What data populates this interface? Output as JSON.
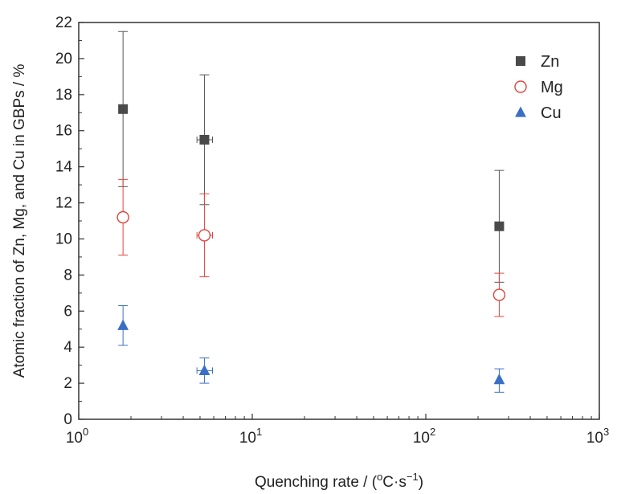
{
  "chart_data": {
    "type": "scatter",
    "xlabel": "Quenching rate / (",
    "xlabel_unit_base": "o",
    "xlabel_unit": "C·s",
    "xlabel_unit_exp": "−1",
    "xlabel_close": ")",
    "ylabel": "Atomic fraction of Zn, Mg, and Cu in GBPs / %",
    "xscale": "log",
    "xlim": [
      1,
      1000
    ],
    "ylim": [
      0,
      22
    ],
    "yticks": [
      0,
      2,
      4,
      6,
      8,
      10,
      12,
      14,
      16,
      18,
      20,
      22
    ],
    "xticks": [
      {
        "value": 1,
        "base": "10",
        "exp": "0"
      },
      {
        "value": 10,
        "base": "10",
        "exp": "1"
      },
      {
        "value": 100,
        "base": "10",
        "exp": "2"
      },
      {
        "value": 1000,
        "base": "10",
        "exp": "3"
      }
    ],
    "grid": false,
    "legend_position": "top-right",
    "series": [
      {
        "name": "Zn",
        "marker": "square",
        "color": "#4a4a4a",
        "filled": true,
        "points": [
          {
            "x": 1.8,
            "y": 17.2,
            "y_low": 12.9,
            "y_high": 21.5
          },
          {
            "x": 5.3,
            "y": 15.5,
            "y_low": 11.9,
            "y_high": 19.1,
            "x_low": 4.8,
            "x_high": 5.9
          },
          {
            "x": 265,
            "y": 10.7,
            "y_low": 7.6,
            "y_high": 13.8
          }
        ]
      },
      {
        "name": "Mg",
        "marker": "circle",
        "color": "#e0443c",
        "filled": false,
        "points": [
          {
            "x": 1.8,
            "y": 11.2,
            "y_low": 9.1,
            "y_high": 13.3
          },
          {
            "x": 5.3,
            "y": 10.2,
            "y_low": 7.9,
            "y_high": 12.5,
            "x_low": 4.8,
            "x_high": 5.9
          },
          {
            "x": 265,
            "y": 6.9,
            "y_low": 5.7,
            "y_high": 8.1
          }
        ]
      },
      {
        "name": "Cu",
        "marker": "triangle",
        "color": "#3a6fc4",
        "filled": true,
        "points": [
          {
            "x": 1.8,
            "y": 5.2,
            "y_low": 4.1,
            "y_high": 6.3
          },
          {
            "x": 5.3,
            "y": 2.7,
            "y_low": 2.0,
            "y_high": 3.4,
            "x_low": 4.8,
            "x_high": 5.9
          },
          {
            "x": 265,
            "y": 2.2,
            "y_low": 1.5,
            "y_high": 2.8
          }
        ]
      }
    ]
  }
}
